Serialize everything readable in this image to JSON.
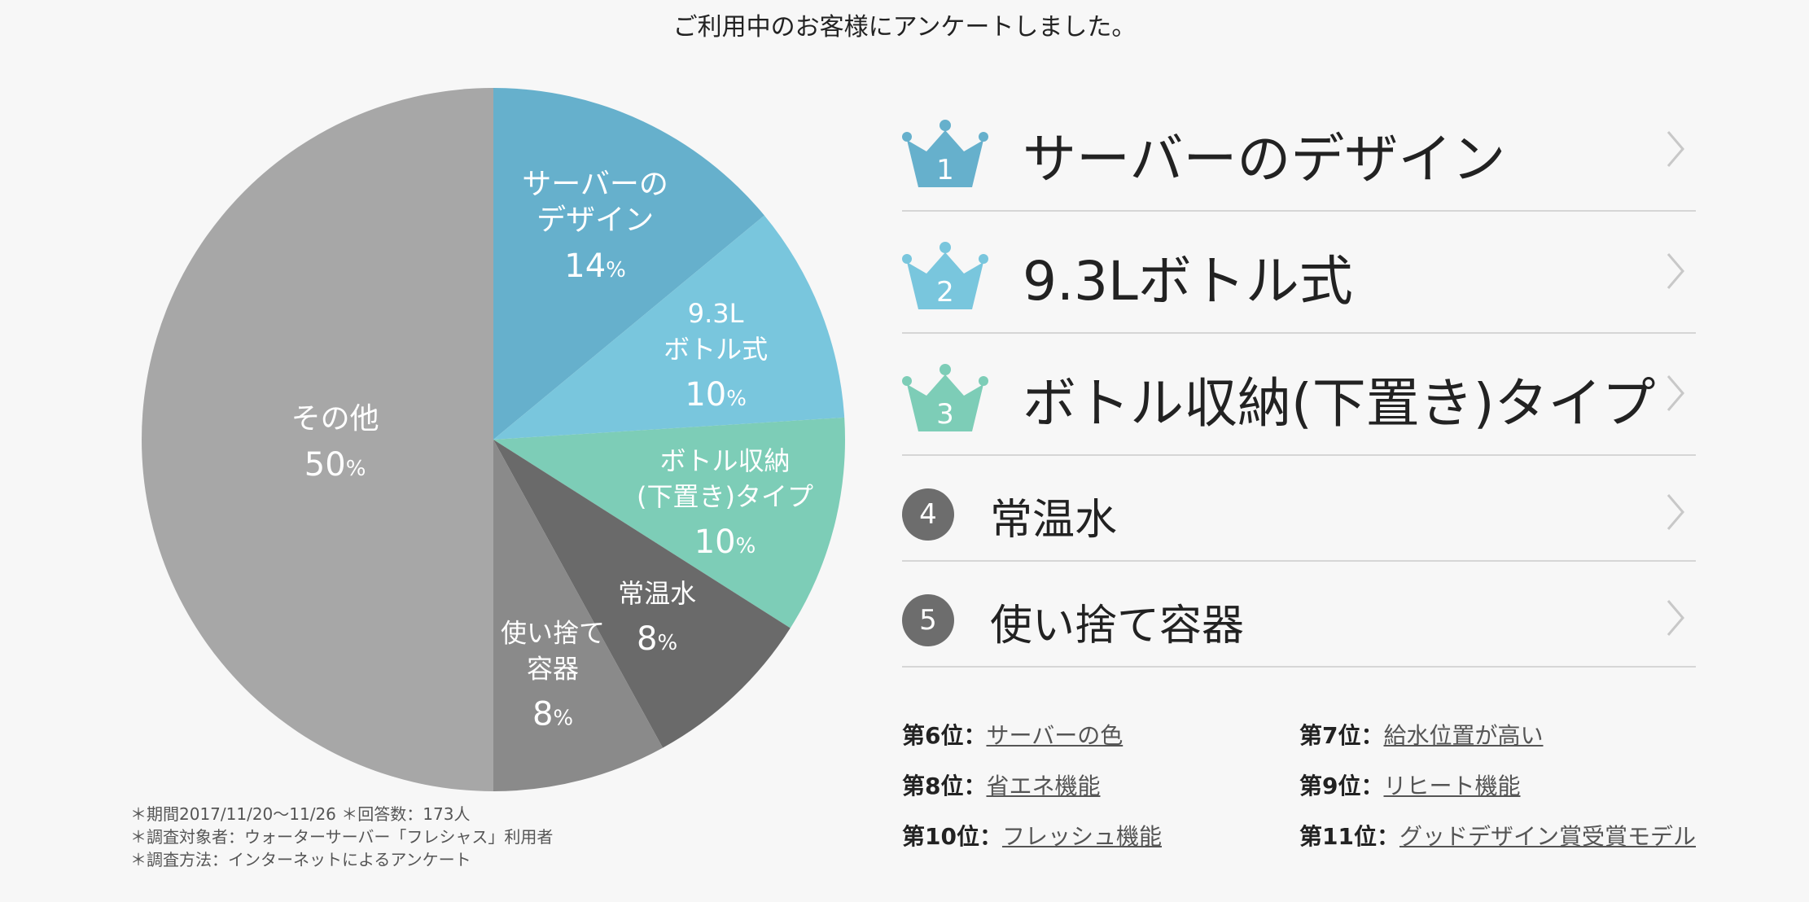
{
  "intro": "ご利用中のお客様にアンケートしました。",
  "chart_data": {
    "type": "pie",
    "unit": "%",
    "slices": [
      {
        "label_lines": [
          "サーバーの",
          "デザイン"
        ],
        "value": 14,
        "color": "#66b0cc"
      },
      {
        "label_lines": [
          "9.3L",
          "ボトル式"
        ],
        "value": 10,
        "color": "#79c6dd"
      },
      {
        "label_lines": [
          "ボトル収納",
          "(下置き)タイプ"
        ],
        "value": 10,
        "color": "#7dcdb7"
      },
      {
        "label_lines": [
          "常温水"
        ],
        "value": 8,
        "color": "#6a6a6a"
      },
      {
        "label_lines": [
          "使い捨て",
          "容器"
        ],
        "value": 8,
        "color": "#8a8a8a"
      },
      {
        "label_lines": [
          "その他"
        ],
        "value": 50,
        "color": "#a7a7a7"
      }
    ]
  },
  "footnotes": [
    "＊期間2017/11/20〜11/26 ＊回答数：173人",
    "＊調査対象者：ウォーターサーバー「フレシャス」利用者",
    "＊調査方法：インターネットによるアンケート"
  ],
  "ranking": [
    {
      "rank": "1",
      "title": "サーバーのデザイン",
      "color": "#66b0cc"
    },
    {
      "rank": "2",
      "title": "9.3Lボトル式",
      "color": "#79c6dd"
    },
    {
      "rank": "3",
      "title": "ボトル収納(下置き)タイプ",
      "color": "#7dcdb7"
    },
    {
      "rank": "4",
      "title": "常温水"
    },
    {
      "rank": "5",
      "title": "使い捨て容器"
    }
  ],
  "minor_ranks": [
    {
      "rank_label": "第6位：",
      "title": "サーバーの色"
    },
    {
      "rank_label": "第7位：",
      "title": "給水位置が高い"
    },
    {
      "rank_label": "第8位：",
      "title": "省エネ機能"
    },
    {
      "rank_label": "第9位：",
      "title": "リヒート機能"
    },
    {
      "rank_label": "第10位：",
      "title": "フレッシュ機能"
    },
    {
      "rank_label": "第11位：",
      "title": "グッドデザイン賞受賞モデル"
    }
  ]
}
